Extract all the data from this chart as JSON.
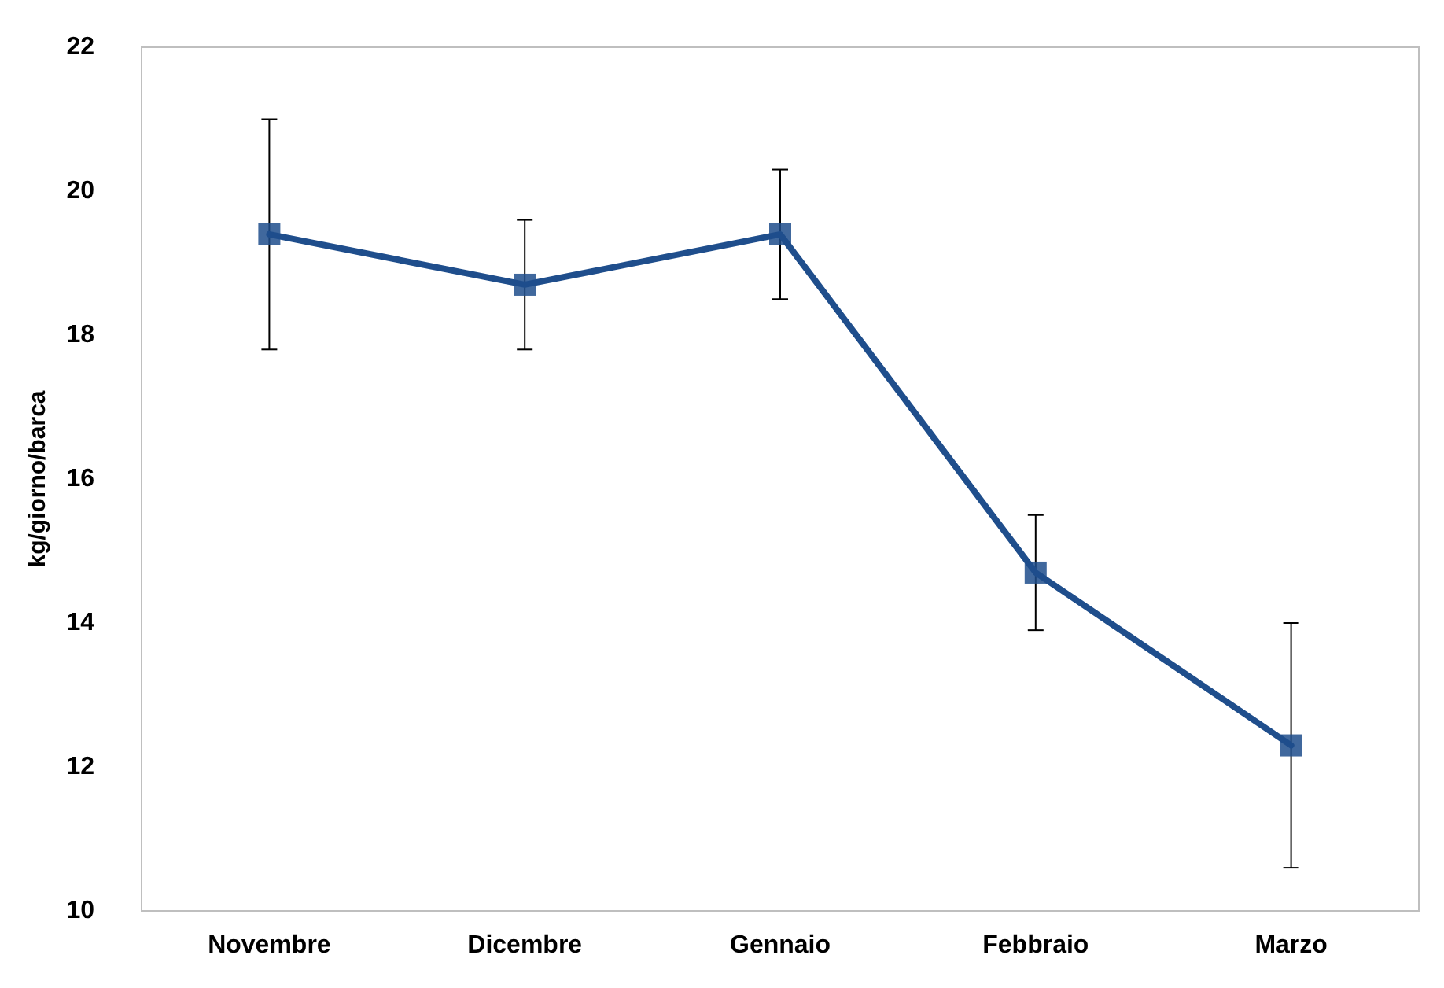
{
  "chart_data": {
    "type": "line",
    "ylabel": "kg/giorno/barca",
    "categories": [
      "Novembre",
      "Dicembre",
      "Gennaio",
      "Febbraio",
      "Marzo"
    ],
    "series": [
      {
        "color": "#1f4e8c",
        "values": [
          19.4,
          18.7,
          19.4,
          14.7,
          12.3
        ],
        "errors": [
          1.6,
          0.9,
          0.9,
          0.8,
          1.7
        ]
      }
    ],
    "ylim": [
      10,
      22
    ],
    "yticks": [
      10,
      12,
      14,
      16,
      18,
      20,
      22
    ],
    "grid": false,
    "marker": "square",
    "line_style": "solid"
  }
}
